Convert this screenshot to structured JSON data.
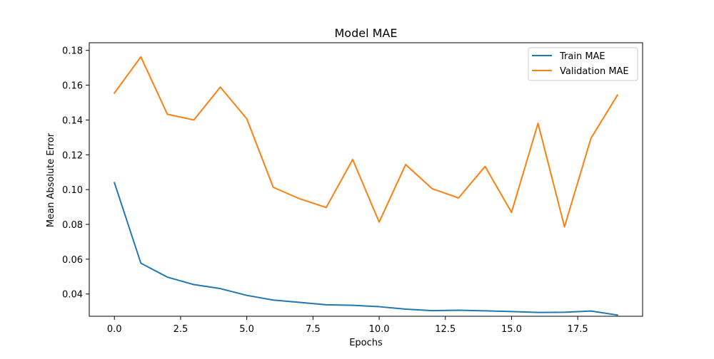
{
  "chart_data": {
    "type": "line",
    "title": "Model MAE",
    "xlabel": "Epochs",
    "ylabel": "Mean Absolute Error",
    "x": [
      0,
      1,
      2,
      3,
      4,
      5,
      6,
      7,
      8,
      9,
      10,
      11,
      12,
      13,
      14,
      15,
      16,
      17,
      18,
      19
    ],
    "xlim": [
      -0.95,
      19.95
    ],
    "ylim": [
      0.0272,
      0.1844
    ],
    "xticks": [
      0.0,
      2.5,
      5.0,
      7.5,
      10.0,
      12.5,
      15.0,
      17.5
    ],
    "xtick_labels": [
      "0.0",
      "2.5",
      "5.0",
      "7.5",
      "10.0",
      "12.5",
      "15.0",
      "17.5"
    ],
    "yticks": [
      0.04,
      0.06,
      0.08,
      0.1,
      0.12,
      0.14,
      0.16,
      0.18
    ],
    "ytick_labels": [
      "0.04",
      "0.06",
      "0.08",
      "0.10",
      "0.12",
      "0.14",
      "0.16",
      "0.18"
    ],
    "grid": false,
    "legend_position": "top-right",
    "series": [
      {
        "name": "Train MAE",
        "color": "#1f77b4",
        "values": [
          0.104,
          0.0577,
          0.0497,
          0.0454,
          0.0431,
          0.0392,
          0.0365,
          0.0352,
          0.0338,
          0.0335,
          0.0327,
          0.0313,
          0.0304,
          0.0307,
          0.0303,
          0.0299,
          0.0294,
          0.0295,
          0.0302,
          0.0279
        ]
      },
      {
        "name": "Validation MAE",
        "color": "#ff7f0e",
        "values": [
          0.1555,
          0.1763,
          0.1433,
          0.14,
          0.1589,
          0.1407,
          0.1013,
          0.0947,
          0.0897,
          0.1173,
          0.0813,
          0.1144,
          0.1005,
          0.0952,
          0.1133,
          0.0869,
          0.1381,
          0.0786,
          0.1295,
          0.1543
        ]
      }
    ]
  }
}
